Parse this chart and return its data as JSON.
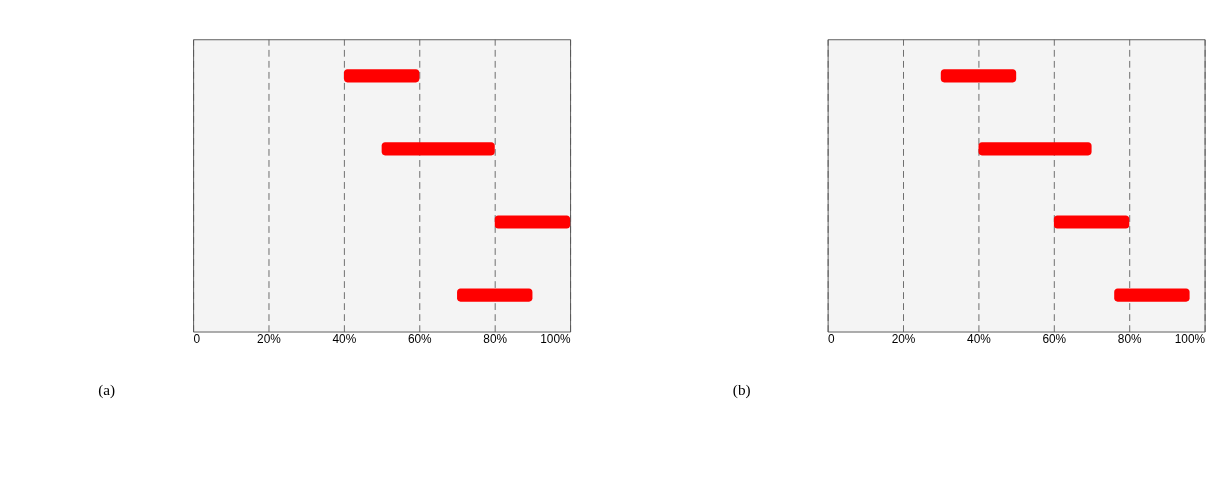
{
  "chart_data": [
    {
      "type": "bar",
      "orientation": "horizontal",
      "categories": [
        null,
        null,
        null,
        null
      ],
      "base": [
        40,
        50,
        80,
        70
      ],
      "values": [
        20,
        30,
        20,
        20
      ],
      "color": "#ff0000",
      "xlim": [
        0,
        100
      ],
      "xticks": [
        0,
        {
          "value": 20,
          "label": "20%"
        },
        {
          "value": 40,
          "label": "40%"
        },
        {
          "value": 60,
          "label": "60%"
        },
        {
          "value": 80,
          "label": "80%"
        },
        {
          "value": 100,
          "label": "100%"
        }
      ],
      "grid": "x",
      "line_style": "dashed",
      "annotations": [
        "(a)"
      ]
    },
    {
      "type": "bar",
      "orientation": "horizontal",
      "categories": [
        null,
        null,
        null,
        null
      ],
      "base": [
        30,
        40,
        60,
        76
      ],
      "values": [
        20,
        30,
        20,
        20
      ],
      "color": "#ff0000",
      "xlim": [
        0,
        100
      ],
      "xticks": [
        0,
        {
          "value": 20,
          "label": "20%"
        },
        {
          "value": 40,
          "label": "40%"
        },
        {
          "value": 60,
          "label": "60%"
        },
        {
          "value": 80,
          "label": "80%"
        },
        {
          "value": 100,
          "label": "100%"
        }
      ],
      "grid": "x",
      "line_style": "dashed",
      "annotations": [
        "(b)"
      ]
    }
  ]
}
